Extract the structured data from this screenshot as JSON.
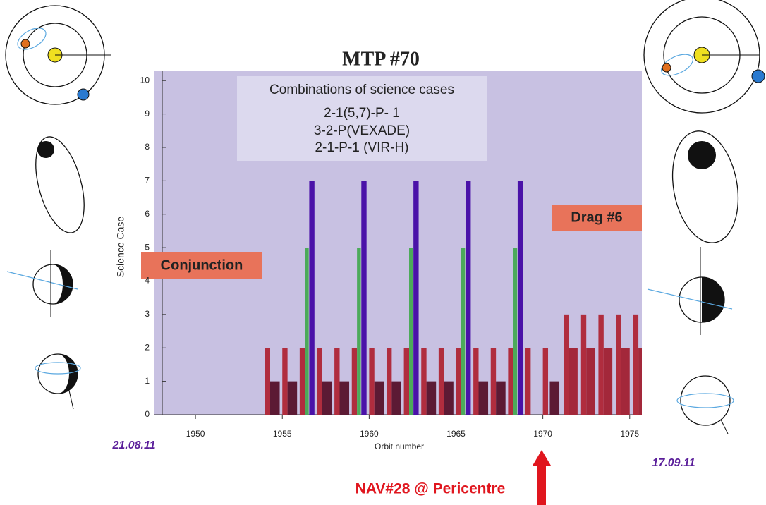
{
  "chart_data": {
    "type": "bar",
    "title": "MTP #70",
    "xlabel": "Orbit number",
    "ylabel": "Science Case",
    "xlim": [
      1947.6,
      1975.7
    ],
    "xticks": [
      1950,
      1955,
      1960,
      1965,
      1970,
      1975
    ],
    "ylim": [
      0,
      10.3
    ],
    "yticks": [
      0,
      1,
      2,
      3,
      4,
      5,
      6,
      7,
      8,
      9,
      10
    ],
    "series": [
      {
        "color": "#b02d3e",
        "x": [
          1954,
          1955,
          1956,
          1957,
          1958,
          1959,
          1960,
          1961,
          1962,
          1963,
          1964,
          1965,
          1966,
          1967,
          1968,
          1969,
          1970,
          1971.2,
          1972.2,
          1973.2,
          1974.2,
          1975.2
        ],
        "values": [
          2,
          2,
          2,
          2,
          2,
          2,
          2,
          2,
          2,
          2,
          2,
          2,
          2,
          2,
          2,
          2,
          2,
          3,
          3,
          3,
          3,
          3
        ]
      },
      {
        "color": "#5c1a34",
        "x": [
          1954.3,
          1955.3,
          1957.3,
          1958.3,
          1960.3,
          1961.3,
          1963.3,
          1964.3,
          1966.3,
          1967.3,
          1970.4
        ],
        "values": [
          1,
          1,
          1,
          1,
          1,
          1,
          1,
          1,
          1,
          1,
          1
        ]
      },
      {
        "color": "#a3283a",
        "x": [
          1971.5,
          1972.5,
          1973.5,
          1974.5,
          1975.5
        ],
        "values": [
          2,
          2,
          2,
          2,
          2
        ]
      },
      {
        "color": "#4caa5a",
        "x": [
          1956.3,
          1959.3,
          1962.3,
          1965.3,
          1968.3
        ],
        "values": [
          5,
          5,
          5,
          5,
          5
        ]
      },
      {
        "color": "#4a12a8",
        "x": [
          1956.55,
          1959.55,
          1962.55,
          1965.55,
          1968.55
        ],
        "values": [
          7,
          7,
          7,
          7,
          7
        ]
      }
    ],
    "annotations": {
      "science_box": [
        "Combinations of science cases",
        "2-1(5,7)-P- 1",
        "3-2-P(VEXADE)",
        "2-1-P-1 (VIR-H)"
      ],
      "conjunction": "Conjunction",
      "drag": "Drag #6",
      "start_date": "21.08.11",
      "end_date": "17.09.11",
      "nav": "NAV#28 @ Pericentre"
    }
  }
}
